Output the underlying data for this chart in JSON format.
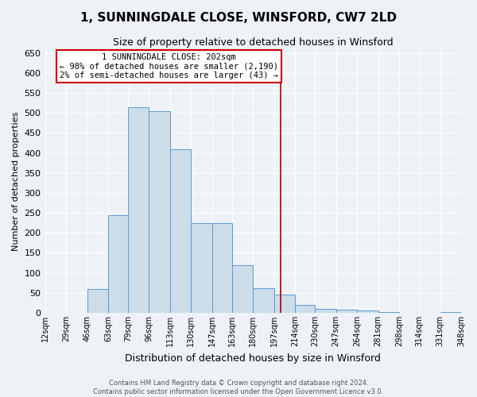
{
  "title": "1, SUNNINGDALE CLOSE, WINSFORD, CW7 2LD",
  "subtitle": "Size of property relative to detached houses in Winsford",
  "xlabel": "Distribution of detached houses by size in Winsford",
  "ylabel": "Number of detached properties",
  "bar_edges": [
    12,
    29,
    46,
    63,
    79,
    96,
    113,
    130,
    147,
    163,
    180,
    197,
    214,
    230,
    247,
    264,
    281,
    298,
    314,
    331,
    348
  ],
  "bar_heights": [
    0,
    0,
    60,
    245,
    515,
    505,
    410,
    225,
    225,
    120,
    62,
    45,
    20,
    10,
    7,
    5,
    3,
    0,
    0,
    2
  ],
  "tick_labels": [
    "12sqm",
    "29sqm",
    "46sqm",
    "63sqm",
    "79sqm",
    "96sqm",
    "113sqm",
    "130sqm",
    "147sqm",
    "163sqm",
    "180sqm",
    "197sqm",
    "214sqm",
    "230sqm",
    "247sqm",
    "264sqm",
    "281sqm",
    "298sqm",
    "314sqm",
    "331sqm",
    "348sqm"
  ],
  "bar_color": "#ccdce8",
  "bar_edge_color": "#5b9bd5",
  "vline_x": 202,
  "vline_color": "#aa0000",
  "annotation_text": "1 SUNNINGDALE CLOSE: 202sqm\n← 98% of detached houses are smaller (2,190)\n2% of semi-detached houses are larger (43) →",
  "annotation_box_color": "#ffffff",
  "annotation_box_edge": "#cc0000",
  "ylim": [
    0,
    660
  ],
  "yticks": [
    0,
    50,
    100,
    150,
    200,
    250,
    300,
    350,
    400,
    450,
    500,
    550,
    600,
    650
  ],
  "footer_line1": "Contains HM Land Registry data © Crown copyright and database right 2024.",
  "footer_line2": "Contains public sector information licensed under the Open Government Licence v3.0.",
  "bg_color": "#eef2f7",
  "plot_bg_color": "#eef2f7",
  "grid_color": "#ffffff",
  "title_fontsize": 11,
  "subtitle_fontsize": 9,
  "xlabel_fontsize": 9,
  "ylabel_fontsize": 8,
  "ytick_fontsize": 8,
  "xtick_fontsize": 7
}
